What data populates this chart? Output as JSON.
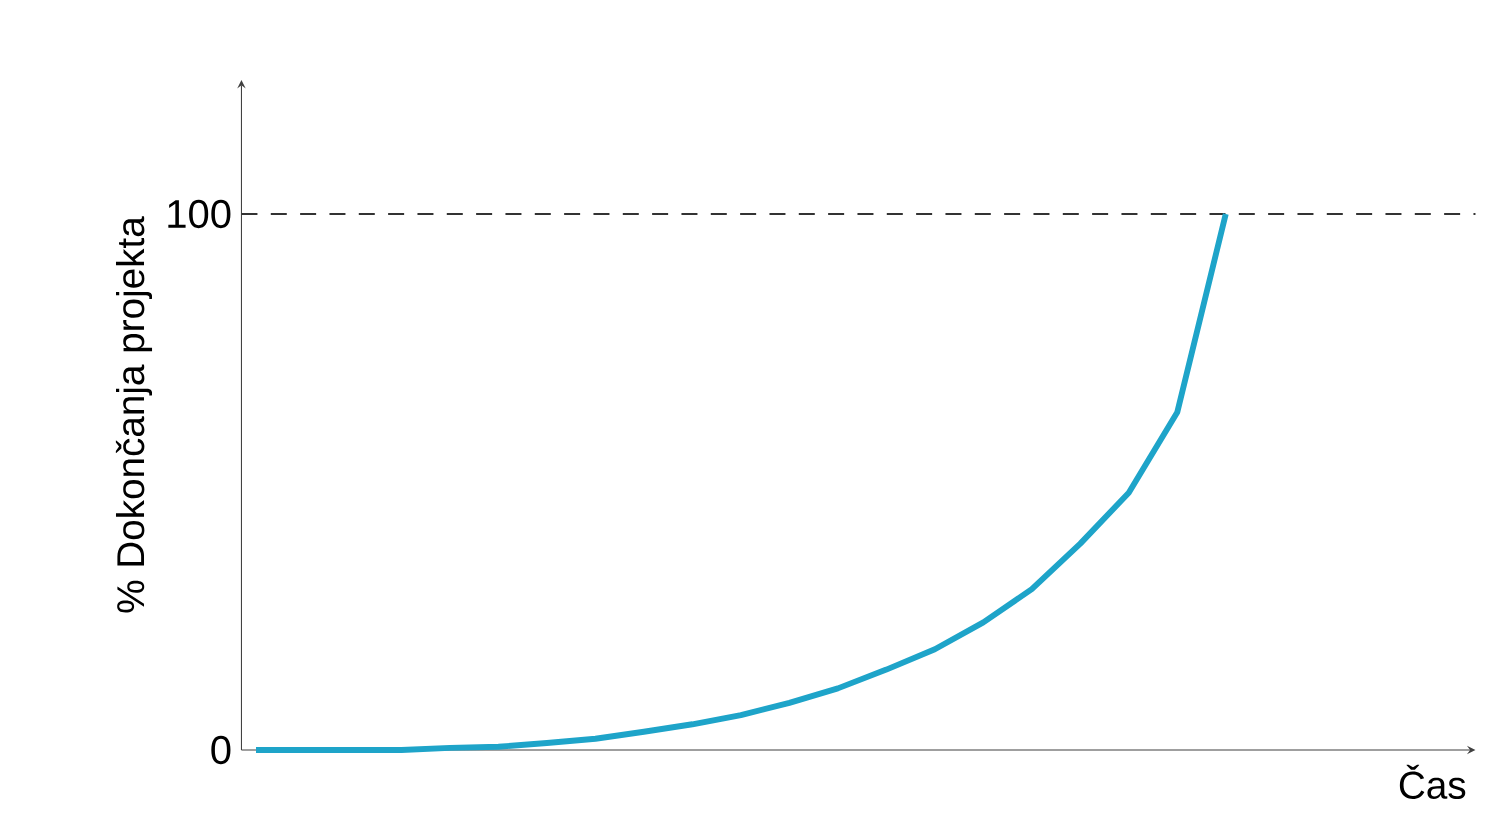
{
  "chart_data": {
    "type": "line",
    "xlabel": "Čas",
    "ylabel": "% Dokončanja projekta",
    "categories": [
      null,
      null,
      null,
      null,
      null,
      null,
      null,
      null,
      null,
      null,
      null,
      null,
      null,
      null,
      null,
      null,
      null,
      null,
      null,
      null,
      null,
      null,
      null,
      null,
      null,
      null
    ],
    "series": [
      {
        "color": "#1ea4c9",
        "values": [
          0,
          0,
          0,
          0,
          0.4,
          0.6,
          1.3,
          2.1,
          3.4,
          4.8,
          6.5,
          8.8,
          11.5,
          15,
          18.8,
          23.8,
          30,
          38.5,
          48,
          63,
          100,
          null,
          null,
          null,
          null,
          null
        ]
      }
    ],
    "ylim": [
      0,
      125
    ],
    "yticks": [
      0,
      100
    ],
    "tick_labels": "y",
    "ref_lines": [
      {
        "axis": "y",
        "value": 100,
        "color": "#333333",
        "line_style": "dashed"
      }
    ]
  }
}
